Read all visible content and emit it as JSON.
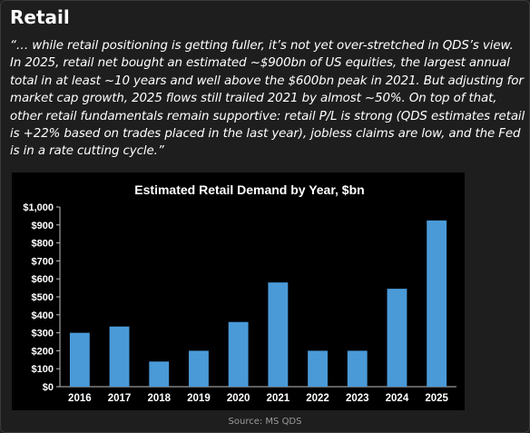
{
  "header": {
    "title": "Retail",
    "quote": "“… while retail positioning is getting fuller, it’s not yet over-stretched in QDS’s view. In 2025, retail net bought an estimated ~$900bn of US equities, the largest annual total in at least ~10 years and well above the $600bn peak in 2021. But adjusting for market cap growth, 2025 flows still trailed 2021 by almost ~50%. On top of that, other retail fundamentals remain supportive: retail P/L is strong (QDS estimates retail is +22% based on trades placed in the last year), jobless claims are low, and the Fed is in a rate cutting cycle.”"
  },
  "chart_data": {
    "type": "bar",
    "title": "Estimated Retail Demand by Year, $bn",
    "xlabel": "",
    "ylabel": "",
    "categories": [
      "2016",
      "2017",
      "2018",
      "2019",
      "2020",
      "2021",
      "2022",
      "2023",
      "2024",
      "2025"
    ],
    "values": [
      300,
      335,
      140,
      200,
      360,
      580,
      200,
      200,
      545,
      925
    ],
    "ylim": [
      0,
      1000
    ],
    "yticks": [
      0,
      100,
      200,
      300,
      400,
      500,
      600,
      700,
      800,
      900,
      1000
    ],
    "ytick_labels": [
      "$0",
      "$100",
      "$200",
      "$300",
      "$400",
      "$500",
      "$600",
      "$700",
      "$800",
      "$900",
      "$1,000"
    ],
    "grid": false,
    "legend": "none",
    "bar_color": "#4a9ad8"
  },
  "footer": {
    "source": "Source: MS QDS"
  }
}
